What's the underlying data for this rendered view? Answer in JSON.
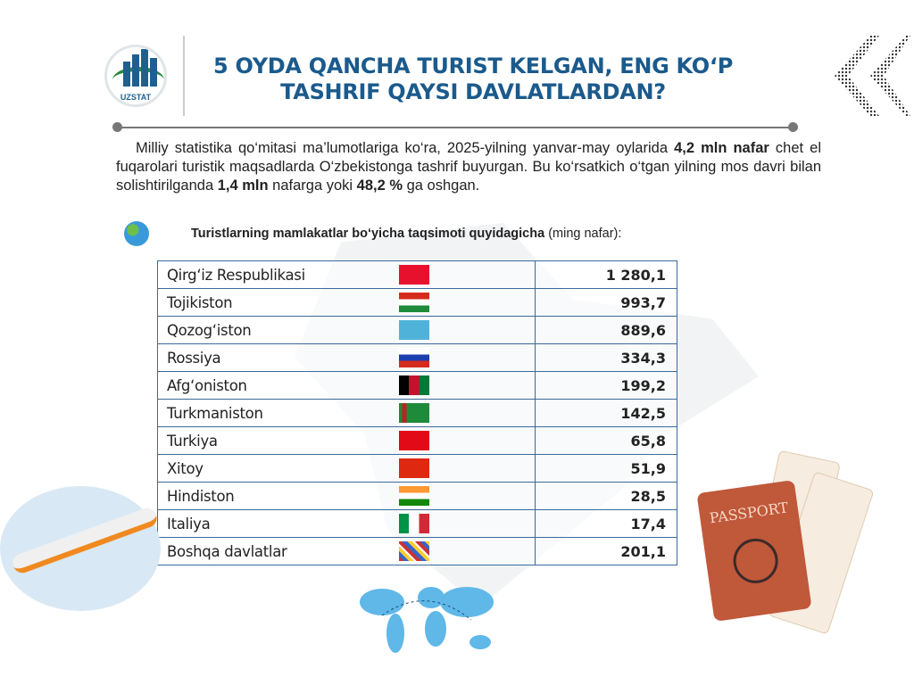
{
  "logo": {
    "text": "UZSTAT"
  },
  "title": {
    "line1": "5 OYDA QANCHA TURIST KELGAN, ENG KO‘P",
    "line2": "TASHRIF QAYSI DAVLATLARDAN?"
  },
  "intro": {
    "t1": "Milliy statistika qo‘mitasi ma’lumotlariga ko‘ra, 2025-yilning  yanvar-may oylarida ",
    "b1": "4,2 mln nafar",
    "t2": " chet el fuqarolari turistik maqsadlarda O‘zbekistonga tashrif buyurgan. Bu ko‘rsatkich o‘tgan yilning mos davri bilan solishtirilganda ",
    "b2": "1,4 mln",
    "t3": " nafarga yoki ",
    "b3": "48,2 %",
    "t4": " ga oshgan."
  },
  "subtitle": {
    "bold": "Turistlarning mamlakatlar bo‘yicha taqsimoti quyidagicha",
    "unit": " (ming nafar):"
  },
  "table": {
    "rows": [
      {
        "country": "Qirg‘iz Respublikasi",
        "value": "1 280,1",
        "flag": "kyrgyzstan"
      },
      {
        "country": "Tojikiston",
        "value": "993,7",
        "flag": "tajikistan"
      },
      {
        "country": "Qozog‘iston",
        "value": "889,6",
        "flag": "kazakhstan"
      },
      {
        "country": "Rossiya",
        "value": "334,3",
        "flag": "russia"
      },
      {
        "country": "Afg‘oniston",
        "value": "199,2",
        "flag": "afghanistan"
      },
      {
        "country": "Turkmaniston",
        "value": "142,5",
        "flag": "turkmenistan"
      },
      {
        "country": "Turkiya",
        "value": "65,8",
        "flag": "turkey"
      },
      {
        "country": "Xitoy",
        "value": "51,9",
        "flag": "china"
      },
      {
        "country": "Hindiston",
        "value": "28,5",
        "flag": "india"
      },
      {
        "country": "Italiya",
        "value": "17,4",
        "flag": "italy"
      },
      {
        "country": "Boshqa davlatlar",
        "value": "201,1",
        "flag": "mixed-flags"
      }
    ]
  },
  "decor": {
    "passport_text": "PASSPORT"
  },
  "colors": {
    "title": "#1b5a8c",
    "border": "#3a6a9a"
  }
}
